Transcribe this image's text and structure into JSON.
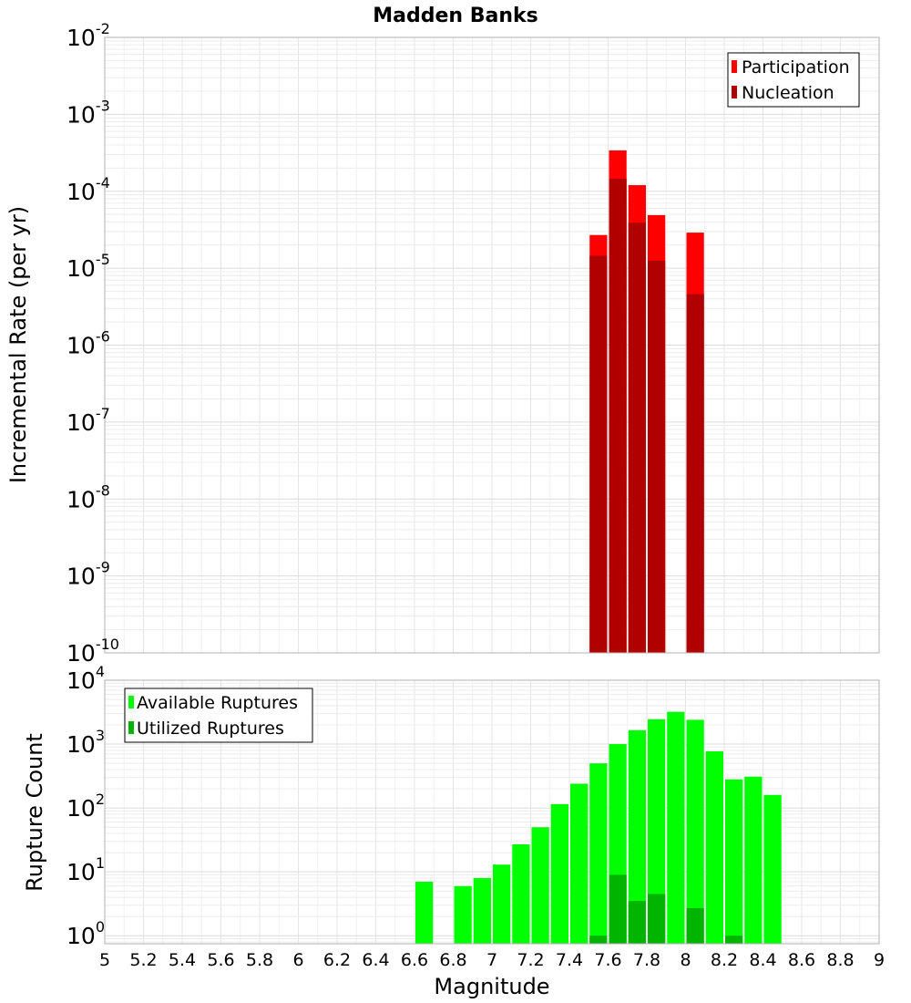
{
  "chart_data": [
    {
      "type": "bar",
      "scale": "log",
      "title": "Madden Banks",
      "xlabel": "Magnitude",
      "ylabel": "Incremental Rate (per yr)",
      "xlim": [
        5,
        9
      ],
      "ylim": [
        1e-10,
        0.01
      ],
      "yticks": [
        {
          "base": "10",
          "exp": "-2"
        },
        {
          "base": "10",
          "exp": "-3"
        },
        {
          "base": "10",
          "exp": "-4"
        },
        {
          "base": "10",
          "exp": "-5"
        },
        {
          "base": "10",
          "exp": "-6"
        },
        {
          "base": "10",
          "exp": "-7"
        },
        {
          "base": "10",
          "exp": "-8"
        },
        {
          "base": "10",
          "exp": "-9"
        },
        {
          "base": "10",
          "exp": "-10"
        }
      ],
      "legend_position": "top-right",
      "bin_width": 0.1,
      "series": [
        {
          "name": "Participation",
          "color": "#ff0000",
          "points": [
            {
              "x": 7.55,
              "y": 2.7e-05
            },
            {
              "x": 7.65,
              "y": 0.00034
            },
            {
              "x": 7.75,
              "y": 0.00012
            },
            {
              "x": 7.85,
              "y": 4.9e-05
            },
            {
              "x": 8.05,
              "y": 2.9e-05
            }
          ]
        },
        {
          "name": "Nucleation",
          "color": "#b00000",
          "points": [
            {
              "x": 7.55,
              "y": 1.45e-05
            },
            {
              "x": 7.65,
              "y": 0.000145
            },
            {
              "x": 7.75,
              "y": 3.9e-05
            },
            {
              "x": 7.85,
              "y": 1.25e-05
            },
            {
              "x": 8.05,
              "y": 4.6e-06
            }
          ]
        }
      ]
    },
    {
      "type": "bar",
      "scale": "log",
      "xlabel": "Magnitude",
      "ylabel": "Rupture Count",
      "xlim": [
        5,
        9
      ],
      "ylim": [
        0.75,
        10000
      ],
      "yticks": [
        {
          "base": "10",
          "exp": "4"
        },
        {
          "base": "10",
          "exp": "3"
        },
        {
          "base": "10",
          "exp": "2"
        },
        {
          "base": "10",
          "exp": "1"
        },
        {
          "base": "10",
          "exp": "0"
        }
      ],
      "xticks": [
        "5",
        "5.2",
        "5.4",
        "5.6",
        "5.8",
        "6",
        "6.2",
        "6.4",
        "6.6",
        "6.8",
        "7",
        "7.2",
        "7.4",
        "7.6",
        "7.8",
        "8",
        "8.2",
        "8.4",
        "8.6",
        "8.8",
        "9"
      ],
      "legend_position": "top-left",
      "bin_width": 0.1,
      "series": [
        {
          "name": "Available Ruptures",
          "color": "#00ff00",
          "points": [
            {
              "x": 6.65,
              "y": 7
            },
            {
              "x": 6.85,
              "y": 6
            },
            {
              "x": 6.95,
              "y": 8
            },
            {
              "x": 7.05,
              "y": 13
            },
            {
              "x": 7.15,
              "y": 27
            },
            {
              "x": 7.25,
              "y": 50
            },
            {
              "x": 7.35,
              "y": 115
            },
            {
              "x": 7.45,
              "y": 240
            },
            {
              "x": 7.55,
              "y": 500
            },
            {
              "x": 7.65,
              "y": 1000
            },
            {
              "x": 7.75,
              "y": 1650
            },
            {
              "x": 7.85,
              "y": 2450
            },
            {
              "x": 7.95,
              "y": 3200
            },
            {
              "x": 8.05,
              "y": 2400
            },
            {
              "x": 8.15,
              "y": 770
            },
            {
              "x": 8.25,
              "y": 280
            },
            {
              "x": 8.35,
              "y": 310
            },
            {
              "x": 8.45,
              "y": 160
            }
          ]
        },
        {
          "name": "Utilized Ruptures",
          "color": "#00b400",
          "points": [
            {
              "x": 7.55,
              "y": 1
            },
            {
              "x": 7.65,
              "y": 9
            },
            {
              "x": 7.75,
              "y": 3.5
            },
            {
              "x": 7.85,
              "y": 4.5
            },
            {
              "x": 8.05,
              "y": 2.7
            },
            {
              "x": 8.25,
              "y": 1
            }
          ]
        }
      ]
    }
  ]
}
